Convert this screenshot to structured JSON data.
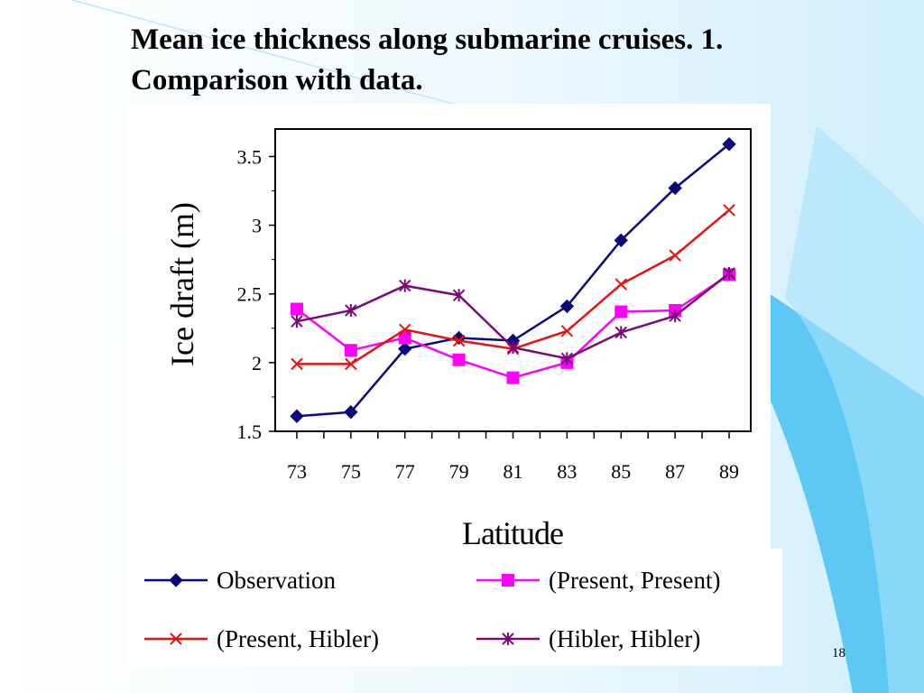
{
  "slide": {
    "title": "Mean ice thickness along submarine cruises. 1. Comparison with data.",
    "page_number": "18"
  },
  "colors": {
    "background_blue": "#8fd3f7",
    "plot_frame": "#000000"
  },
  "chart_data": {
    "type": "line",
    "title": "",
    "xlabel": "Latitude",
    "ylabel": "Ice draft (m)",
    "x": [
      73,
      75,
      77,
      79,
      81,
      83,
      85,
      87,
      89
    ],
    "x_tick_labels": [
      "73",
      "75",
      "77",
      "79",
      "81",
      "83",
      "85",
      "87",
      "89"
    ],
    "xlim": [
      72.2,
      89.8
    ],
    "ylim": [
      1.5,
      3.7
    ],
    "y_ticks": [
      1.5,
      2,
      2.5,
      3,
      3.5
    ],
    "y_tick_labels": [
      "1.5",
      "2",
      "2.5",
      "3",
      "3.5"
    ],
    "grid": false,
    "legend_position": "bottom",
    "series": [
      {
        "name": "Observation",
        "color": "#0a0a7a",
        "marker": "diamond",
        "values": [
          1.61,
          1.64,
          2.1,
          2.18,
          2.16,
          2.41,
          2.89,
          3.27,
          3.59
        ]
      },
      {
        "name": "(Present, Present)",
        "color": "#ff00ff",
        "marker": "square",
        "values": [
          2.39,
          2.09,
          2.18,
          2.02,
          1.89,
          2.0,
          2.37,
          2.38,
          2.64
        ]
      },
      {
        "name": "(Present, Hibler)",
        "color": "#e81010",
        "marker": "x",
        "values": [
          1.99,
          1.99,
          2.24,
          2.16,
          2.1,
          2.23,
          2.57,
          2.78,
          3.11
        ]
      },
      {
        "name": "(Hibler, Hibler)",
        "color": "#7a0a7a",
        "marker": "star",
        "values": [
          2.3,
          2.38,
          2.56,
          2.49,
          2.11,
          2.03,
          2.22,
          2.34,
          2.65
        ]
      }
    ]
  }
}
